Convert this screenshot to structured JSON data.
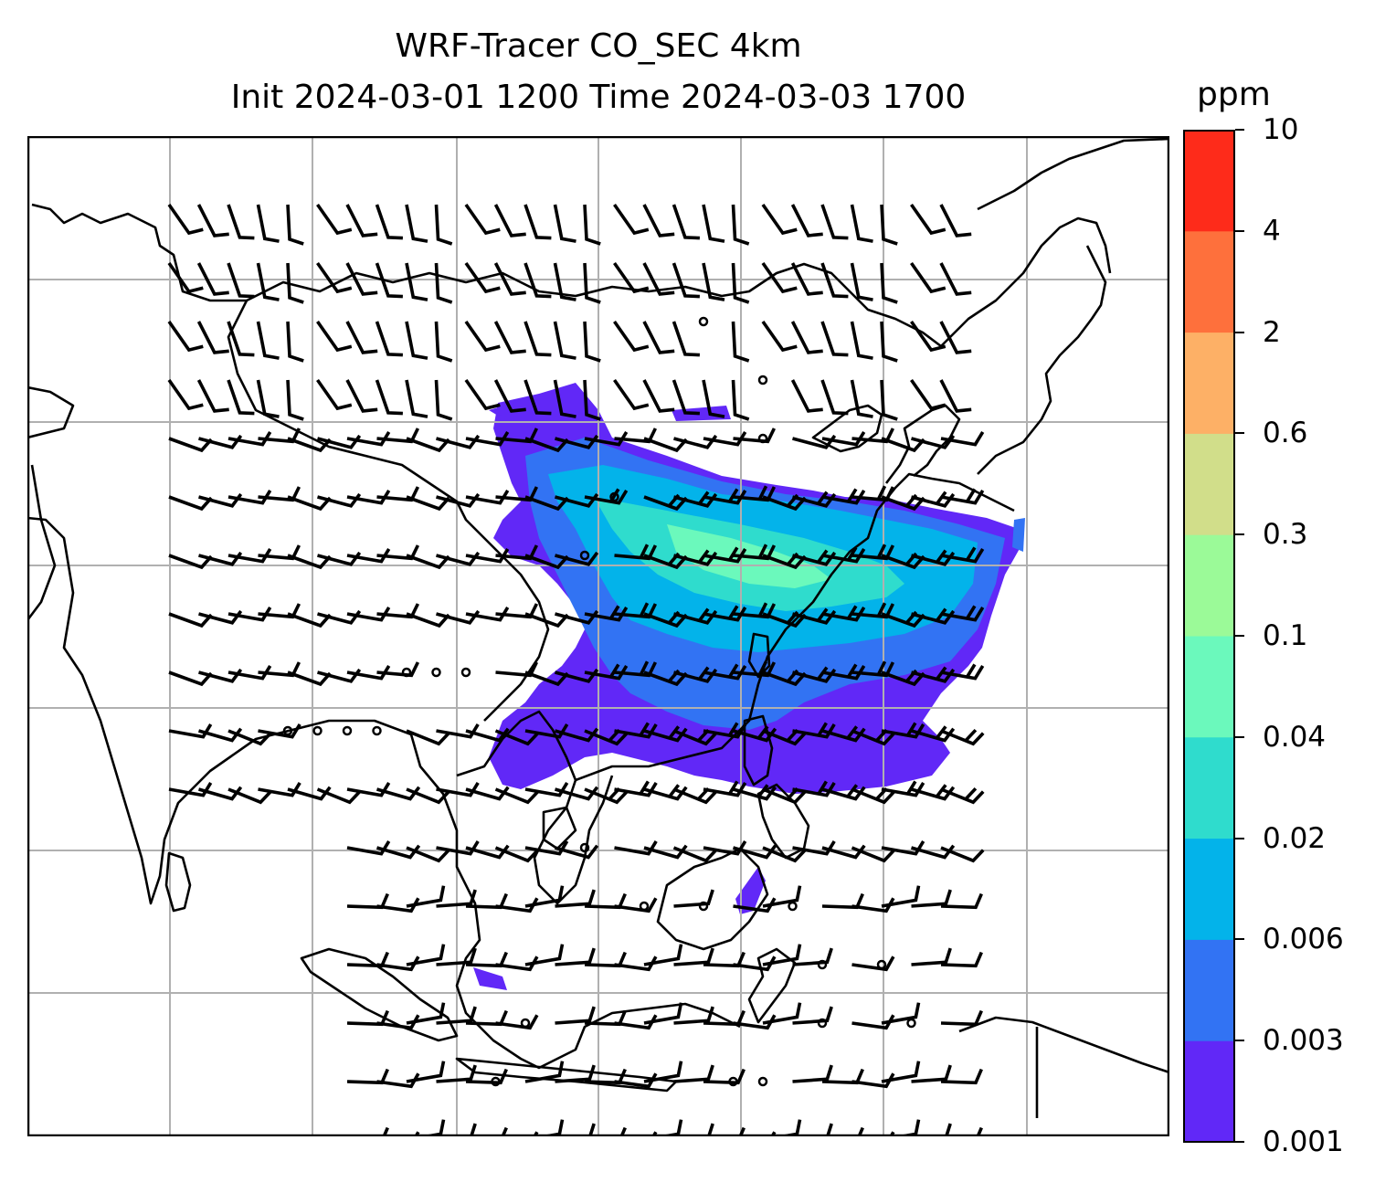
{
  "title": {
    "line1": "WRF-Tracer CO_SEC 4km",
    "line2": "Init 2024-03-01 1200 Time 2024-03-03 1700"
  },
  "colorbar": {
    "unit": "ppm",
    "levels": [
      "0.001",
      "0.003",
      "0.006",
      "0.02",
      "0.04",
      "0.1",
      "0.3",
      "0.6",
      "2",
      "4",
      "10"
    ],
    "colors": [
      "#6128f7",
      "#3273f3",
      "#03b3ea",
      "#2fdccd",
      "#6bf9bc",
      "#9bfa98",
      "#d1de8a",
      "#fdb066",
      "#fe703c",
      "#fe2b1a"
    ]
  },
  "map": {
    "coastline_color": "#000000",
    "gridline_color": "#b0b0b0",
    "barb_color": "#000000"
  }
}
